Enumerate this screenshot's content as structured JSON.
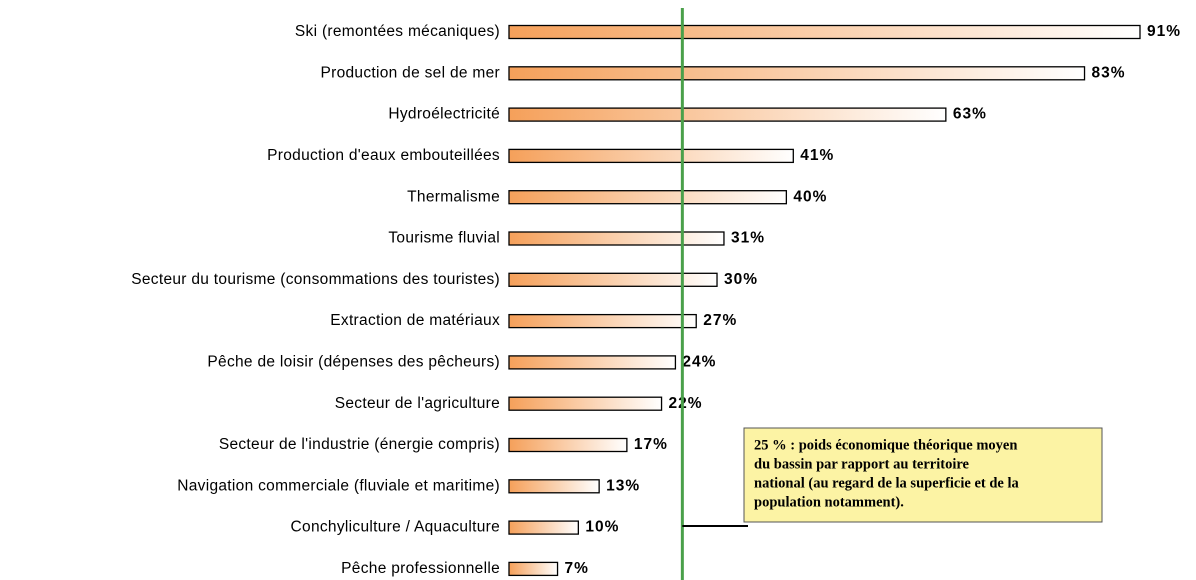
{
  "chart_data": {
    "type": "bar",
    "orientation": "horizontal",
    "categories": [
      "Ski (remontées mécaniques)",
      "Production de sel de mer",
      "Hydroélectricité",
      "Production d'eaux embouteillées",
      "Thermalisme",
      "Tourisme fluvial",
      "Secteur du tourisme (consommations des touristes)",
      "Extraction de matériaux",
      "Pêche de loisir (dépenses des pêcheurs)",
      "Secteur de l'agriculture",
      "Secteur de l'industrie (énergie compris)",
      "Navigation commerciale (fluviale et maritime)",
      "Conchyliculture / Aquaculture",
      "Pêche professionnelle"
    ],
    "values": [
      91,
      83,
      63,
      41,
      40,
      31,
      30,
      27,
      24,
      22,
      17,
      13,
      10,
      7
    ],
    "value_labels": [
      "91%",
      "83%",
      "63%",
      "41%",
      "40%",
      "31%",
      "30%",
      "27%",
      "24%",
      "22%",
      "17%",
      "13%",
      "10%",
      "7%"
    ],
    "color": "#f5a05a",
    "xlim": [
      0,
      91
    ],
    "reference_line": 25,
    "reference_color": "#4aa04a",
    "annotation": [
      "25 % : poids économique théorique moyen",
      "du bassin par rapport au territoire",
      "national (au regard de la superficie et de la",
      "population notamment)."
    ]
  }
}
